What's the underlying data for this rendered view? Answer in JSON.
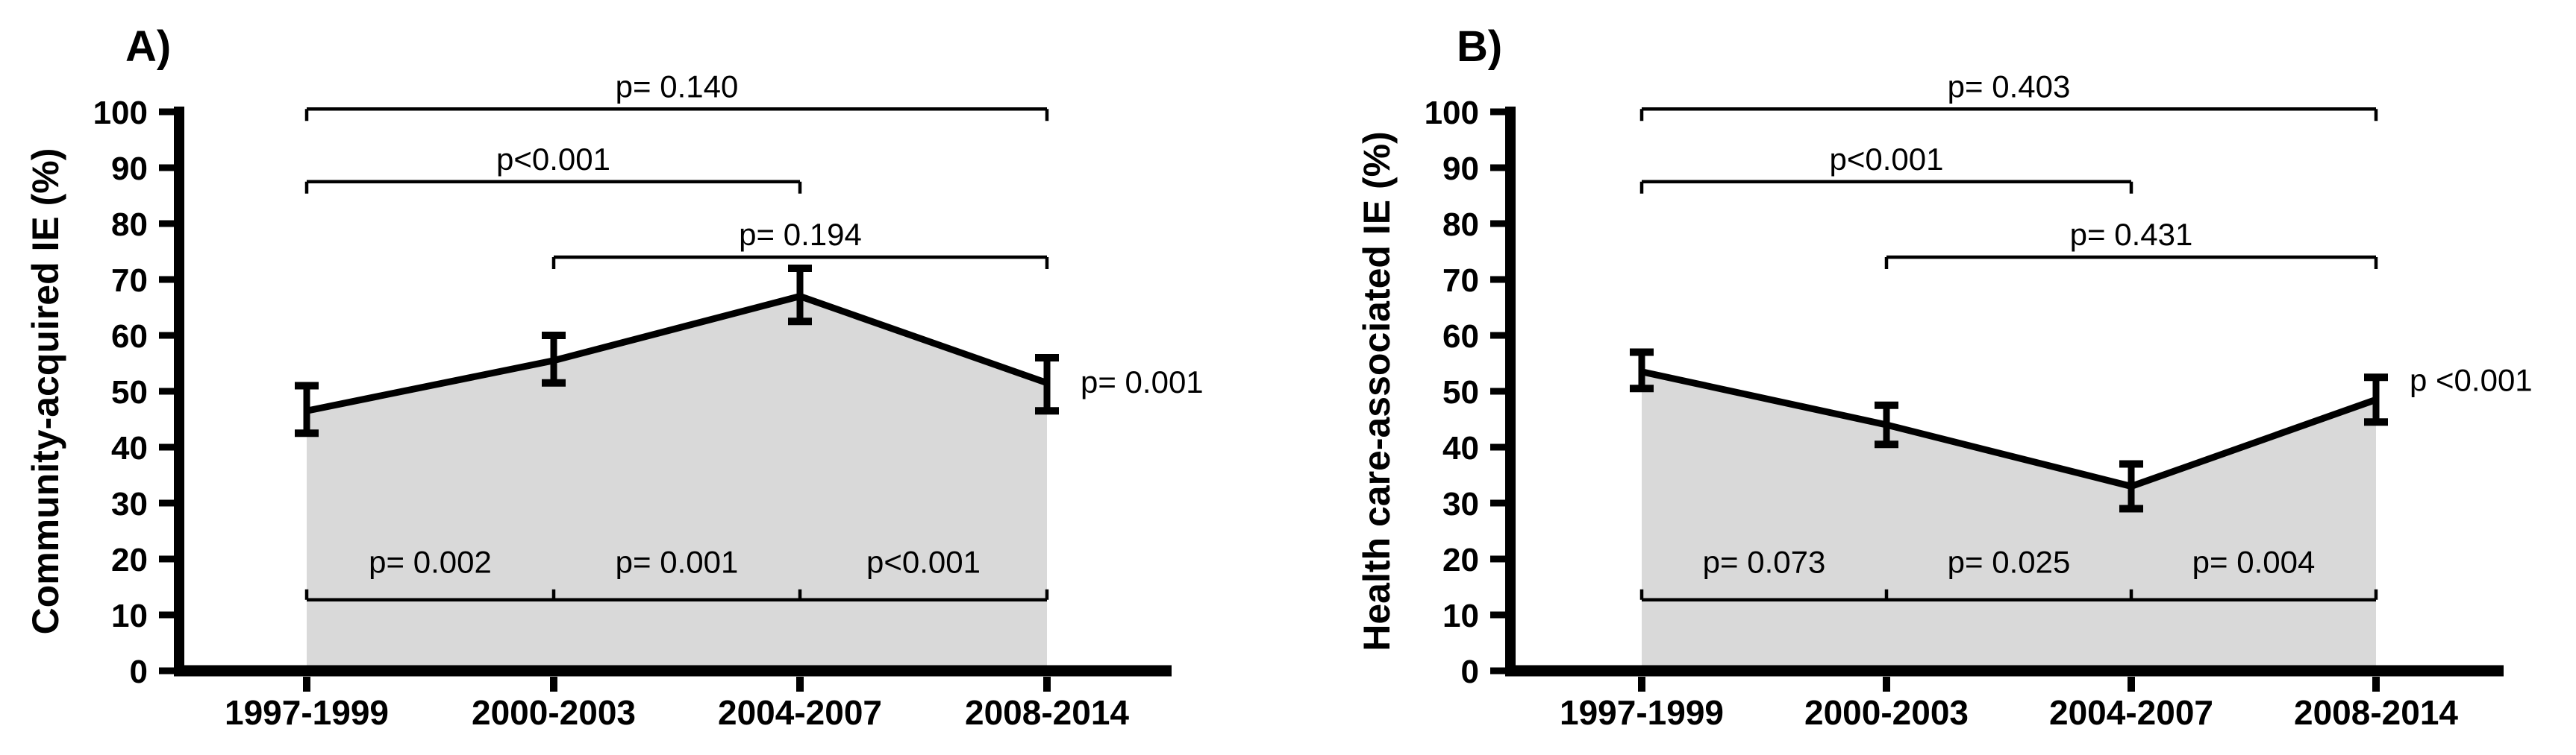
{
  "figure": {
    "background": "#ffffff",
    "ink_color": "#000000",
    "area_fill_color": "#d9d9d9"
  },
  "chart_data": [
    {
      "type": "line",
      "panel_label": "A)",
      "ylabel": "Community-acquired IE (%)",
      "xlabel": "",
      "ylim": [
        0,
        100
      ],
      "y_ticks": [
        0,
        10,
        20,
        30,
        40,
        50,
        60,
        70,
        80,
        90,
        100
      ],
      "categories": [
        "1997-1999",
        "2000-2003",
        "2004-2007",
        "2008-2014"
      ],
      "grid": false,
      "area_fill": true,
      "series": [
        {
          "name": "Community-acquired IE",
          "values": [
            46.5,
            55.5,
            67,
            51.5
          ],
          "error_low": [
            42.5,
            51.5,
            62.5,
            46.5
          ],
          "error_high": [
            51,
            60,
            72,
            56
          ]
        }
      ],
      "significance_brackets": [
        {
          "from_category": 0,
          "to_category": 3,
          "y": 100.5,
          "label": "p= 0.140"
        },
        {
          "from_category": 0,
          "to_category": 2,
          "y": 87.5,
          "label": "p<0.001"
        },
        {
          "from_category": 1,
          "to_category": 3,
          "y": 74,
          "label": "p= 0.194"
        }
      ],
      "pairwise_baseline": {
        "y": 12.7,
        "label_y": 19.5,
        "labels": [
          "p= 0.002",
          "p= 0.001",
          "p<0.001"
        ]
      },
      "endpoint_label": {
        "text": "p= 0.001",
        "y": 51.7
      }
    },
    {
      "type": "line",
      "panel_label": "B)",
      "ylabel": "Health care-associated IE (%)",
      "xlabel": "",
      "ylim": [
        0,
        100
      ],
      "y_ticks": [
        0,
        10,
        20,
        30,
        40,
        50,
        60,
        70,
        80,
        90,
        100
      ],
      "categories": [
        "1997-1999",
        "2000-2003",
        "2004-2007",
        "2008-2014"
      ],
      "grid": false,
      "area_fill": true,
      "series": [
        {
          "name": "Health care-associated IE",
          "values": [
            53.5,
            44,
            33,
            48.5
          ],
          "error_low": [
            50.5,
            40.5,
            29,
            44.5
          ],
          "error_high": [
            57,
            47.5,
            37,
            52.5
          ]
        }
      ],
      "significance_brackets": [
        {
          "from_category": 0,
          "to_category": 3,
          "y": 100.5,
          "label": "p= 0.403"
        },
        {
          "from_category": 0,
          "to_category": 2,
          "y": 87.5,
          "label": "p<0.001"
        },
        {
          "from_category": 1,
          "to_category": 3,
          "y": 74,
          "label": "p= 0.431"
        }
      ],
      "pairwise_baseline": {
        "y": 12.7,
        "label_y": 19.5,
        "labels": [
          "p= 0.073",
          "p= 0.025",
          "p= 0.004"
        ]
      },
      "endpoint_label": {
        "text": "p <0.001",
        "y": 52
      }
    }
  ]
}
